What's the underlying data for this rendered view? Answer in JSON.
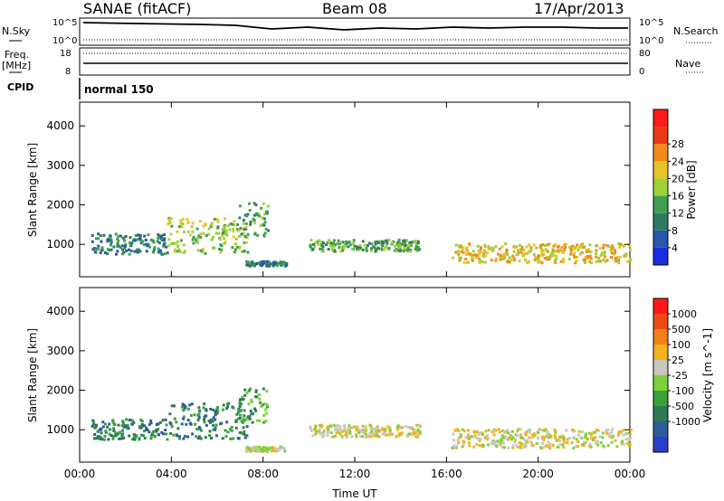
{
  "header": {
    "title": "SANAE (fitACF)",
    "beam": "Beam 08",
    "date": "17/Apr/2013"
  },
  "side_labels": {
    "nsky": "N.Sky",
    "freq": "Freq.",
    "freq_unit": "[MHz]",
    "cpid": "CPID",
    "nsearch": "N.Search",
    "nave": "Nave",
    "cpid_value": "normal 150"
  },
  "top_axes": {
    "nsky_ticks": [
      "10^5",
      "10^0"
    ],
    "freq_ticks": [
      "18",
      "8"
    ],
    "nsearch_ticks": [
      "10^5",
      "10^0"
    ],
    "nave_ticks": [
      "80",
      "0"
    ]
  },
  "colors": {
    "nodata": "#ffffff",
    "ground_scatter": "#c8c8c0"
  },
  "chart_data": [
    {
      "type": "heatmap",
      "name": "power",
      "xlabel": "",
      "ylabel": "Slant Range [km]",
      "x_ticks": [
        "00:00",
        "04:00",
        "08:00",
        "12:00",
        "16:00",
        "20:00",
        "00:00"
      ],
      "y_ticks": [
        "1000",
        "2000",
        "3000",
        "4000"
      ],
      "xlim": [
        0,
        24
      ],
      "ylim": [
        180,
        4600
      ],
      "colorbar": {
        "label": "Power [dB]",
        "ticks": [
          "4",
          "8",
          "12",
          "16",
          "20",
          "24",
          "28"
        ],
        "colors": [
          "#1a2ae0",
          "#2a55b0",
          "#2e7c60",
          "#3fa050",
          "#9fd13a",
          "#e6c42a",
          "#f28a1c",
          "#e83a14",
          "#ff1a1a"
        ]
      },
      "regions": [
        {
          "t": [
            0.5,
            3.8
          ],
          "r": [
            780,
            1300
          ],
          "level": 2
        },
        {
          "t": [
            3.8,
            7.3
          ],
          "r": [
            800,
            1700
          ],
          "level": 4
        },
        {
          "t": [
            6.9,
            8.2
          ],
          "r": [
            1200,
            2100
          ],
          "level": 3
        },
        {
          "t": [
            7.2,
            9.0
          ],
          "r": [
            480,
            600
          ],
          "level": 2
        },
        {
          "t": [
            10.0,
            14.8
          ],
          "r": [
            850,
            1150
          ],
          "level": 3
        },
        {
          "t": [
            16.2,
            24.0
          ],
          "r": [
            560,
            1050
          ],
          "level": 5
        }
      ]
    },
    {
      "type": "heatmap",
      "name": "velocity",
      "xlabel": "Time UT",
      "ylabel": "Slant Range [km]",
      "x_ticks": [
        "00:00",
        "04:00",
        "08:00",
        "12:00",
        "16:00",
        "20:00",
        "00:00"
      ],
      "y_ticks": [
        "1000",
        "2000",
        "3000",
        "4000"
      ],
      "xlim": [
        0,
        24
      ],
      "ylim": [
        180,
        4600
      ],
      "colorbar": {
        "label": "Velocity [m s^-1]",
        "ticks": [
          "1000",
          "500",
          "100",
          "25",
          "-25",
          "-100",
          "-500",
          "-1000"
        ],
        "colors": [
          "#2a3fc8",
          "#2e5a9a",
          "#2f7a55",
          "#3aa03a",
          "#7fd23a",
          "#c8c8c0",
          "#f2b21c",
          "#f08018",
          "#f04a14",
          "#ff1a1a"
        ]
      },
      "regions": [
        {
          "t": [
            0.5,
            3.8
          ],
          "r": [
            780,
            1300
          ],
          "level": 2
        },
        {
          "t": [
            3.8,
            7.3
          ],
          "r": [
            800,
            1700
          ],
          "level": 2
        },
        {
          "t": [
            6.9,
            8.2
          ],
          "r": [
            1200,
            2100
          ],
          "level": 3
        },
        {
          "t": [
            7.2,
            9.0
          ],
          "r": [
            480,
            600
          ],
          "level": 5
        },
        {
          "t": [
            10.0,
            14.8
          ],
          "r": [
            850,
            1150
          ],
          "level": 5
        },
        {
          "t": [
            16.2,
            24.0
          ],
          "r": [
            560,
            1050
          ],
          "level": 5
        }
      ]
    }
  ]
}
